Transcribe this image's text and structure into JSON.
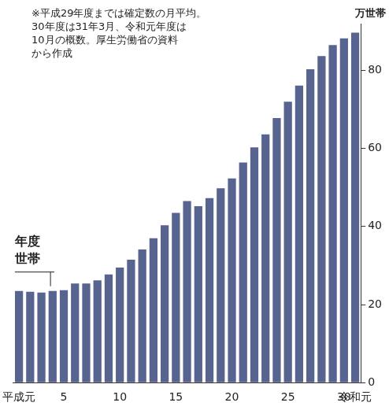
{
  "chart_data": {
    "type": "bar",
    "note": [
      "※平成29年度までは確定数の月平均。",
      "30年度は31年3月、令和元年度は",
      "10月の概数。厚生労働省の資料",
      "から作成"
    ],
    "y_unit": "万世帯",
    "annotations": [
      "年度",
      "世帯"
    ],
    "categories": [
      "平成元",
      null,
      null,
      null,
      "5",
      null,
      null,
      null,
      null,
      "10",
      null,
      null,
      null,
      null,
      "15",
      null,
      null,
      null,
      null,
      "20",
      null,
      null,
      null,
      null,
      "25",
      null,
      null,
      null,
      null,
      "30",
      "令和元"
    ],
    "values": [
      23.5,
      23.3,
      23.1,
      23.5,
      23.7,
      25.4,
      25.4,
      26.2,
      27.7,
      29.5,
      31.5,
      34.1,
      37.0,
      40.3,
      43.5,
      46.5,
      45.2,
      47.3,
      49.8,
      52.3,
      56.4,
      60.3,
      63.6,
      67.8,
      72.0,
      76.1,
      80.3,
      83.7,
      86.5,
      88.2,
      89.7
    ],
    "color": "#56648f",
    "ylim": [
      0,
      92
    ],
    "yticks": [
      0,
      20,
      40,
      60,
      80
    ],
    "grid": false
  }
}
